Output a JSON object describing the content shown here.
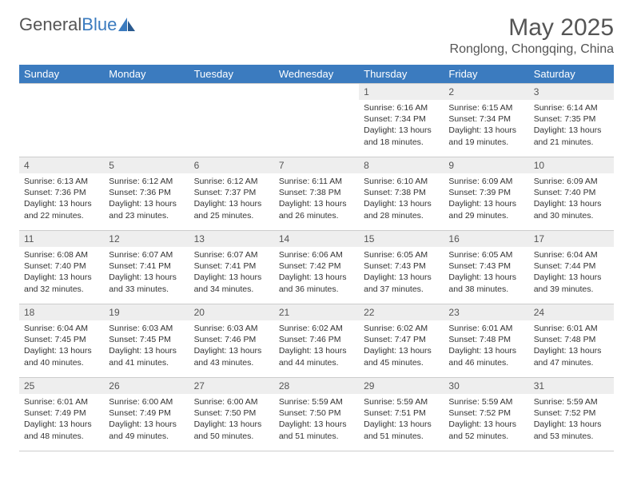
{
  "brand": {
    "part1": "General",
    "part2": "Blue"
  },
  "title": "May 2025",
  "location": "Ronglong, Chongqing, China",
  "colors": {
    "header_bg": "#3b7bbf",
    "header_text": "#ffffff",
    "daynum_bg": "#eeeeee",
    "border": "#cccccc",
    "text": "#333333",
    "title_text": "#555555"
  },
  "weekdays": [
    "Sunday",
    "Monday",
    "Tuesday",
    "Wednesday",
    "Thursday",
    "Friday",
    "Saturday"
  ],
  "weeks": [
    [
      null,
      null,
      null,
      null,
      {
        "n": "1",
        "sr": "Sunrise: 6:16 AM",
        "ss": "Sunset: 7:34 PM",
        "dl": "Daylight: 13 hours and 18 minutes."
      },
      {
        "n": "2",
        "sr": "Sunrise: 6:15 AM",
        "ss": "Sunset: 7:34 PM",
        "dl": "Daylight: 13 hours and 19 minutes."
      },
      {
        "n": "3",
        "sr": "Sunrise: 6:14 AM",
        "ss": "Sunset: 7:35 PM",
        "dl": "Daylight: 13 hours and 21 minutes."
      }
    ],
    [
      {
        "n": "4",
        "sr": "Sunrise: 6:13 AM",
        "ss": "Sunset: 7:36 PM",
        "dl": "Daylight: 13 hours and 22 minutes."
      },
      {
        "n": "5",
        "sr": "Sunrise: 6:12 AM",
        "ss": "Sunset: 7:36 PM",
        "dl": "Daylight: 13 hours and 23 minutes."
      },
      {
        "n": "6",
        "sr": "Sunrise: 6:12 AM",
        "ss": "Sunset: 7:37 PM",
        "dl": "Daylight: 13 hours and 25 minutes."
      },
      {
        "n": "7",
        "sr": "Sunrise: 6:11 AM",
        "ss": "Sunset: 7:38 PM",
        "dl": "Daylight: 13 hours and 26 minutes."
      },
      {
        "n": "8",
        "sr": "Sunrise: 6:10 AM",
        "ss": "Sunset: 7:38 PM",
        "dl": "Daylight: 13 hours and 28 minutes."
      },
      {
        "n": "9",
        "sr": "Sunrise: 6:09 AM",
        "ss": "Sunset: 7:39 PM",
        "dl": "Daylight: 13 hours and 29 minutes."
      },
      {
        "n": "10",
        "sr": "Sunrise: 6:09 AM",
        "ss": "Sunset: 7:40 PM",
        "dl": "Daylight: 13 hours and 30 minutes."
      }
    ],
    [
      {
        "n": "11",
        "sr": "Sunrise: 6:08 AM",
        "ss": "Sunset: 7:40 PM",
        "dl": "Daylight: 13 hours and 32 minutes."
      },
      {
        "n": "12",
        "sr": "Sunrise: 6:07 AM",
        "ss": "Sunset: 7:41 PM",
        "dl": "Daylight: 13 hours and 33 minutes."
      },
      {
        "n": "13",
        "sr": "Sunrise: 6:07 AM",
        "ss": "Sunset: 7:41 PM",
        "dl": "Daylight: 13 hours and 34 minutes."
      },
      {
        "n": "14",
        "sr": "Sunrise: 6:06 AM",
        "ss": "Sunset: 7:42 PM",
        "dl": "Daylight: 13 hours and 36 minutes."
      },
      {
        "n": "15",
        "sr": "Sunrise: 6:05 AM",
        "ss": "Sunset: 7:43 PM",
        "dl": "Daylight: 13 hours and 37 minutes."
      },
      {
        "n": "16",
        "sr": "Sunrise: 6:05 AM",
        "ss": "Sunset: 7:43 PM",
        "dl": "Daylight: 13 hours and 38 minutes."
      },
      {
        "n": "17",
        "sr": "Sunrise: 6:04 AM",
        "ss": "Sunset: 7:44 PM",
        "dl": "Daylight: 13 hours and 39 minutes."
      }
    ],
    [
      {
        "n": "18",
        "sr": "Sunrise: 6:04 AM",
        "ss": "Sunset: 7:45 PM",
        "dl": "Daylight: 13 hours and 40 minutes."
      },
      {
        "n": "19",
        "sr": "Sunrise: 6:03 AM",
        "ss": "Sunset: 7:45 PM",
        "dl": "Daylight: 13 hours and 41 minutes."
      },
      {
        "n": "20",
        "sr": "Sunrise: 6:03 AM",
        "ss": "Sunset: 7:46 PM",
        "dl": "Daylight: 13 hours and 43 minutes."
      },
      {
        "n": "21",
        "sr": "Sunrise: 6:02 AM",
        "ss": "Sunset: 7:46 PM",
        "dl": "Daylight: 13 hours and 44 minutes."
      },
      {
        "n": "22",
        "sr": "Sunrise: 6:02 AM",
        "ss": "Sunset: 7:47 PM",
        "dl": "Daylight: 13 hours and 45 minutes."
      },
      {
        "n": "23",
        "sr": "Sunrise: 6:01 AM",
        "ss": "Sunset: 7:48 PM",
        "dl": "Daylight: 13 hours and 46 minutes."
      },
      {
        "n": "24",
        "sr": "Sunrise: 6:01 AM",
        "ss": "Sunset: 7:48 PM",
        "dl": "Daylight: 13 hours and 47 minutes."
      }
    ],
    [
      {
        "n": "25",
        "sr": "Sunrise: 6:01 AM",
        "ss": "Sunset: 7:49 PM",
        "dl": "Daylight: 13 hours and 48 minutes."
      },
      {
        "n": "26",
        "sr": "Sunrise: 6:00 AM",
        "ss": "Sunset: 7:49 PM",
        "dl": "Daylight: 13 hours and 49 minutes."
      },
      {
        "n": "27",
        "sr": "Sunrise: 6:00 AM",
        "ss": "Sunset: 7:50 PM",
        "dl": "Daylight: 13 hours and 50 minutes."
      },
      {
        "n": "28",
        "sr": "Sunrise: 5:59 AM",
        "ss": "Sunset: 7:50 PM",
        "dl": "Daylight: 13 hours and 51 minutes."
      },
      {
        "n": "29",
        "sr": "Sunrise: 5:59 AM",
        "ss": "Sunset: 7:51 PM",
        "dl": "Daylight: 13 hours and 51 minutes."
      },
      {
        "n": "30",
        "sr": "Sunrise: 5:59 AM",
        "ss": "Sunset: 7:52 PM",
        "dl": "Daylight: 13 hours and 52 minutes."
      },
      {
        "n": "31",
        "sr": "Sunrise: 5:59 AM",
        "ss": "Sunset: 7:52 PM",
        "dl": "Daylight: 13 hours and 53 minutes."
      }
    ]
  ]
}
